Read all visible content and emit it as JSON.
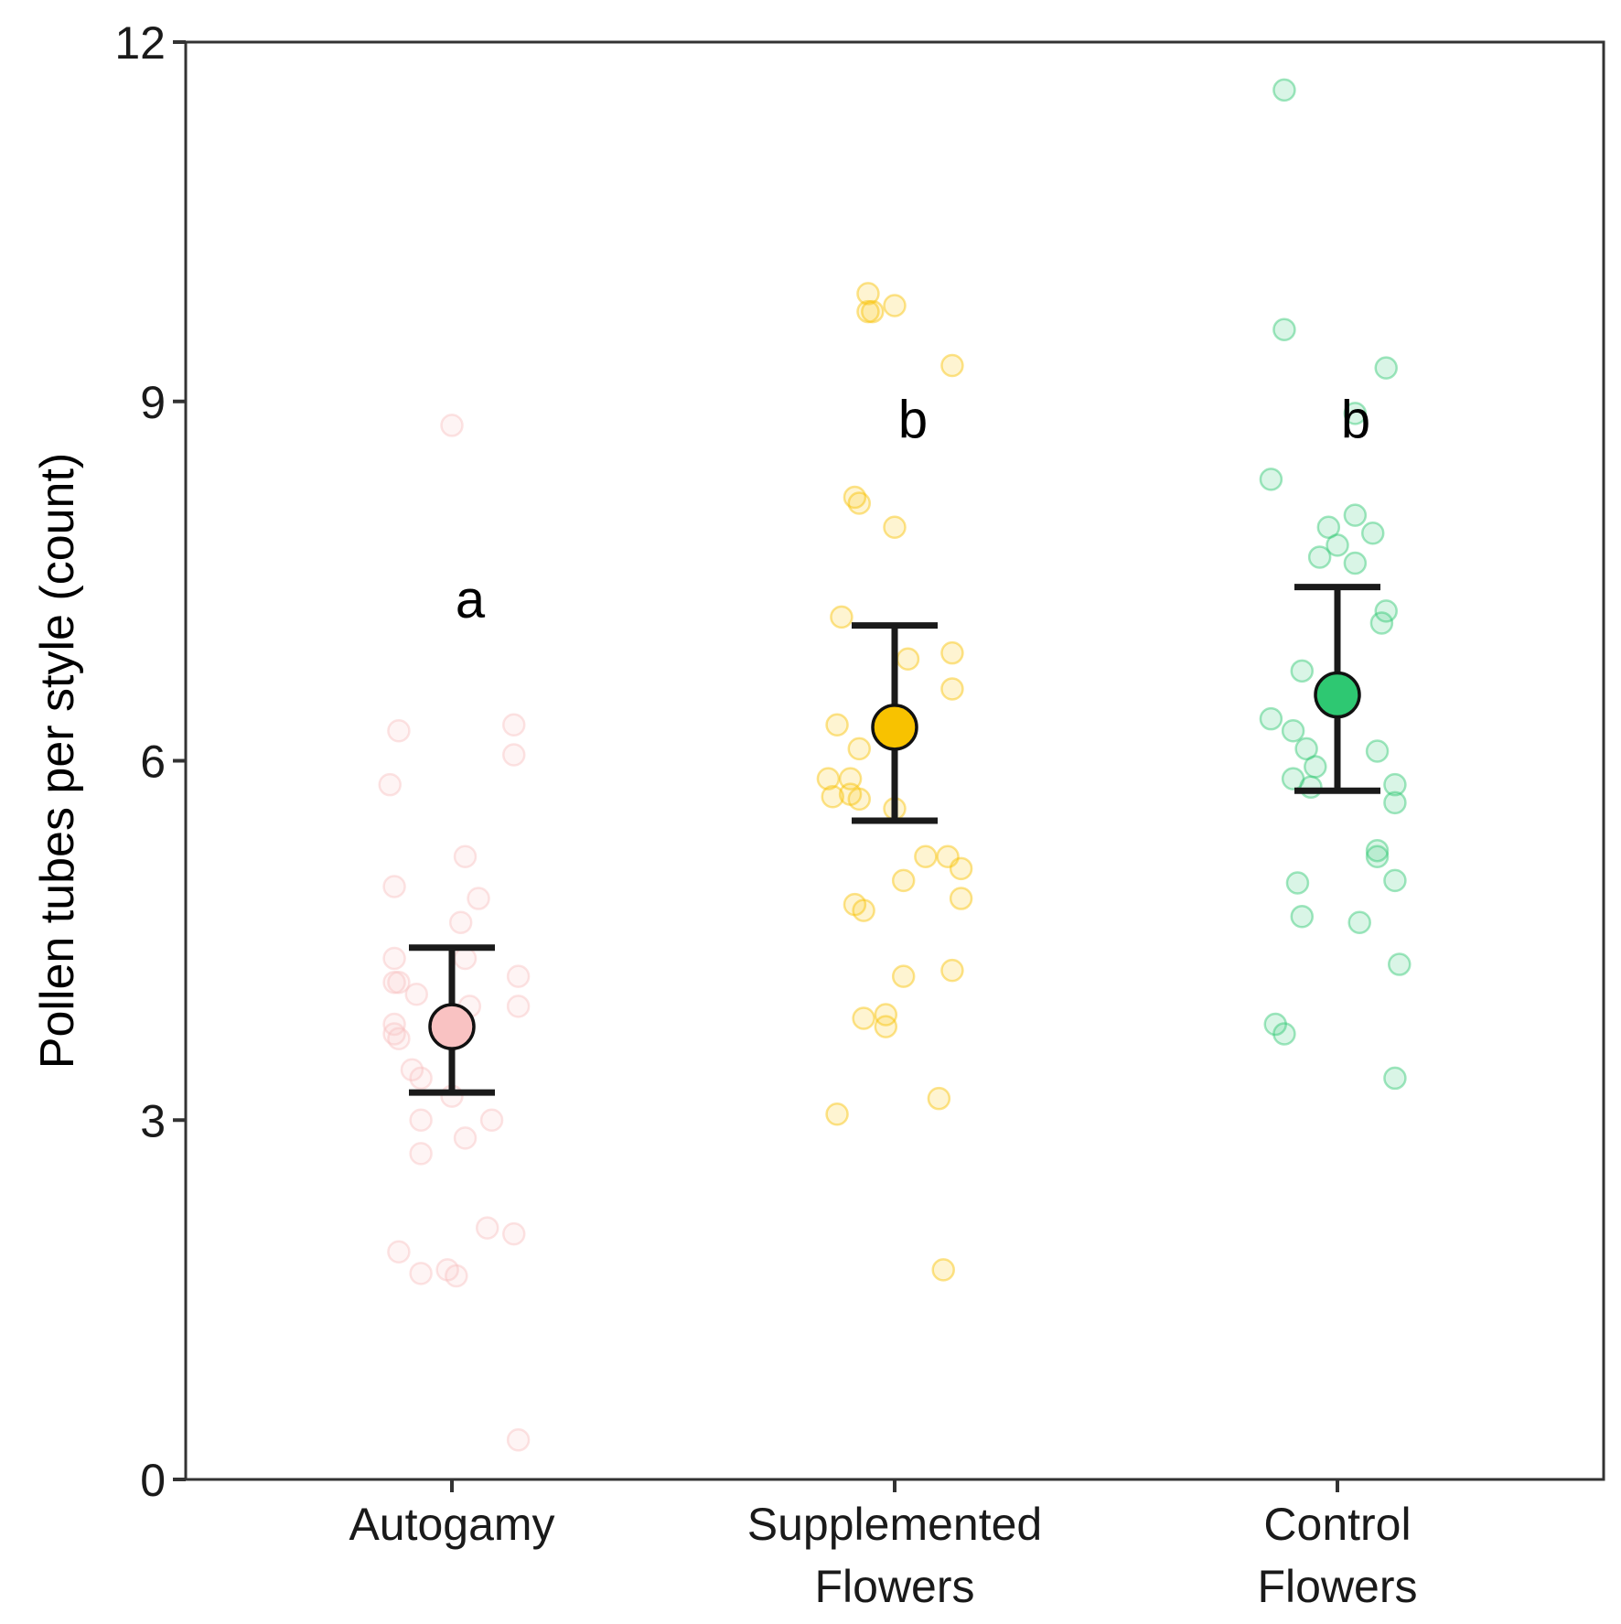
{
  "chart_data": {
    "type": "scatter",
    "title": "",
    "xlabel": "",
    "ylabel": "Pollen tubes per style (count)",
    "ylim": [
      0,
      12
    ],
    "yticks": [
      0,
      3,
      6,
      9,
      12
    ],
    "categories": [
      {
        "lines": [
          "Autogamy"
        ]
      },
      {
        "lines": [
          "Supplemented",
          "Flowers"
        ]
      },
      {
        "lines": [
          "Control",
          "Flowers"
        ]
      }
    ],
    "series": [
      {
        "name": "Autogamy",
        "color": "#F9C2C2",
        "mean": 3.78,
        "ci": [
          3.23,
          4.44
        ],
        "letter": "a",
        "letter_y": 7.35,
        "points": [
          [
            0.0,
            8.8
          ],
          [
            -0.12,
            6.25
          ],
          [
            0.14,
            6.3
          ],
          [
            0.14,
            6.05
          ],
          [
            -0.14,
            5.8
          ],
          [
            0.03,
            5.2
          ],
          [
            -0.13,
            4.95
          ],
          [
            0.06,
            4.85
          ],
          [
            0.02,
            4.65
          ],
          [
            -0.13,
            4.35
          ],
          [
            0.03,
            4.35
          ],
          [
            -0.13,
            4.15
          ],
          [
            -0.12,
            4.15
          ],
          [
            -0.08,
            4.05
          ],
          [
            0.15,
            4.2
          ],
          [
            0.04,
            3.95
          ],
          [
            0.15,
            3.95
          ],
          [
            -0.13,
            3.8
          ],
          [
            -0.13,
            3.72
          ],
          [
            -0.12,
            3.68
          ],
          [
            -0.09,
            3.42
          ],
          [
            -0.07,
            3.35
          ],
          [
            0.0,
            3.2
          ],
          [
            -0.07,
            3.0
          ],
          [
            0.09,
            3.0
          ],
          [
            -0.07,
            2.72
          ],
          [
            0.03,
            2.85
          ],
          [
            0.08,
            2.1
          ],
          [
            0.14,
            2.05
          ],
          [
            -0.12,
            1.9
          ],
          [
            -0.07,
            1.72
          ],
          [
            -0.01,
            1.75
          ],
          [
            0.01,
            1.7
          ],
          [
            0.15,
            0.33
          ]
        ]
      },
      {
        "name": "Supplemented Flowers",
        "color": "#F8C200",
        "mean": 6.28,
        "ci": [
          5.5,
          7.13
        ],
        "letter": "b",
        "letter_y": 8.85,
        "points": [
          [
            -0.05,
            9.75
          ],
          [
            -0.06,
            9.9
          ],
          [
            0.0,
            9.8
          ],
          [
            -0.06,
            9.75
          ],
          [
            0.13,
            9.3
          ],
          [
            -0.09,
            8.2
          ],
          [
            -0.08,
            8.15
          ],
          [
            0.0,
            7.95
          ],
          [
            -0.12,
            7.2
          ],
          [
            0.03,
            6.85
          ],
          [
            0.13,
            6.9
          ],
          [
            0.13,
            6.6
          ],
          [
            -0.13,
            6.3
          ],
          [
            -0.08,
            6.1
          ],
          [
            -0.15,
            5.85
          ],
          [
            -0.1,
            5.85
          ],
          [
            -0.14,
            5.7
          ],
          [
            -0.1,
            5.72
          ],
          [
            -0.08,
            5.68
          ],
          [
            0.0,
            5.6
          ],
          [
            0.07,
            5.2
          ],
          [
            0.12,
            5.2
          ],
          [
            0.15,
            5.1
          ],
          [
            0.02,
            5.0
          ],
          [
            -0.09,
            4.8
          ],
          [
            -0.07,
            4.75
          ],
          [
            0.15,
            4.85
          ],
          [
            0.13,
            4.25
          ],
          [
            0.02,
            4.2
          ],
          [
            -0.07,
            3.85
          ],
          [
            -0.02,
            3.88
          ],
          [
            -0.02,
            3.78
          ],
          [
            0.1,
            3.18
          ],
          [
            -0.13,
            3.05
          ],
          [
            0.11,
            1.75
          ]
        ]
      },
      {
        "name": "Control Flowers",
        "color": "#2EC872",
        "mean": 6.55,
        "ci": [
          5.75,
          7.45
        ],
        "letter": "b",
        "letter_y": 8.85,
        "points": [
          [
            -0.12,
            11.6
          ],
          [
            -0.12,
            9.6
          ],
          [
            0.11,
            9.28
          ],
          [
            0.04,
            8.9
          ],
          [
            -0.15,
            8.35
          ],
          [
            0.04,
            8.05
          ],
          [
            -0.02,
            7.95
          ],
          [
            0.08,
            7.9
          ],
          [
            0.0,
            7.8
          ],
          [
            -0.04,
            7.7
          ],
          [
            0.04,
            7.65
          ],
          [
            0.11,
            7.25
          ],
          [
            0.1,
            7.15
          ],
          [
            -0.08,
            6.75
          ],
          [
            -0.15,
            6.35
          ],
          [
            -0.1,
            6.25
          ],
          [
            -0.07,
            6.1
          ],
          [
            -0.05,
            5.95
          ],
          [
            0.09,
            6.08
          ],
          [
            -0.1,
            5.85
          ],
          [
            -0.06,
            5.78
          ],
          [
            0.13,
            5.8
          ],
          [
            0.13,
            5.65
          ],
          [
            0.09,
            5.25
          ],
          [
            0.09,
            5.2
          ],
          [
            0.13,
            5.0
          ],
          [
            -0.09,
            4.98
          ],
          [
            0.05,
            4.65
          ],
          [
            -0.08,
            4.7
          ],
          [
            0.14,
            4.3
          ],
          [
            -0.14,
            3.8
          ],
          [
            -0.12,
            3.72
          ],
          [
            0.13,
            3.35
          ]
        ]
      }
    ]
  }
}
